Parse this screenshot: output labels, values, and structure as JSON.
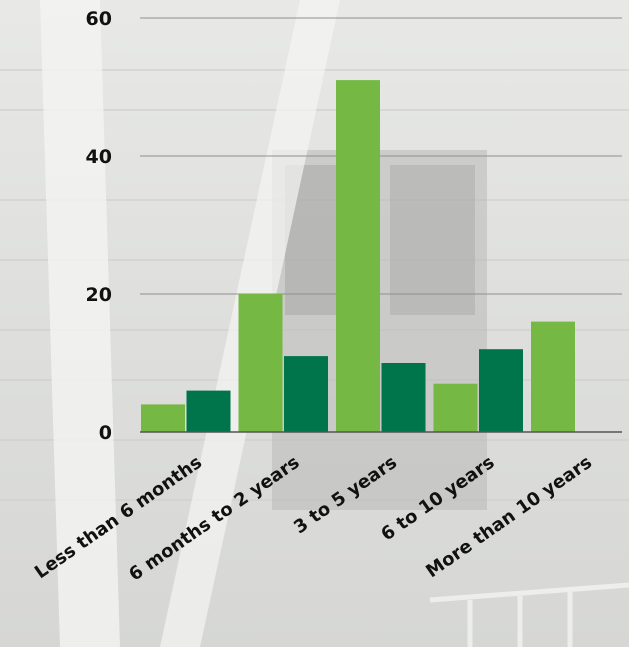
{
  "colors": {
    "series_light": "#75b843",
    "series_dark": "#00744b",
    "gridline": "#8f8f8f",
    "text": "#111111"
  },
  "chart_data": {
    "type": "bar",
    "title": "",
    "xlabel": "",
    "ylabel": "",
    "categories": [
      "Less than 6 months",
      "6 months to 2 years",
      "3 to 5 years",
      "6 to 10 years",
      "More than 10 years"
    ],
    "series": [
      {
        "values": [
          4,
          20,
          51,
          7,
          16
        ]
      },
      {
        "values": [
          6,
          11,
          10,
          12,
          null
        ]
      }
    ],
    "ylim": [
      0,
      60
    ],
    "yticks": [
      0,
      20,
      40,
      60
    ],
    "grid": true,
    "legend": "none"
  }
}
